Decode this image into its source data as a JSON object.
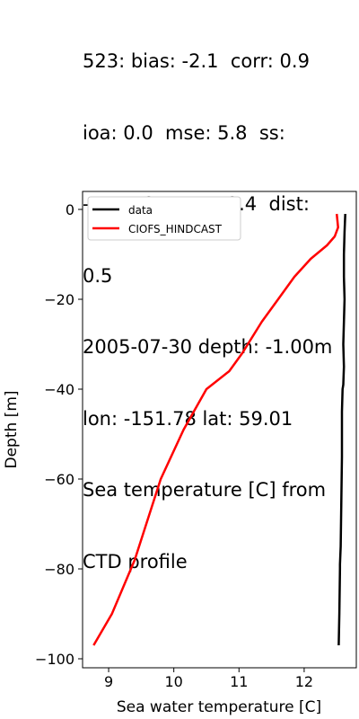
{
  "chart_data": {
    "type": "line",
    "title_lines": [
      "523: bias: -2.1  corr: 0.9",
      "ioa: 0.0  mse: 5.8  ss:",
      "-7715.2  rmse: 2.4  dist:",
      "0.5",
      "2005-07-30 depth: -1.00m",
      "lon: -151.78 lat: 59.01",
      "Sea temperature [C] from",
      "CTD profile"
    ],
    "xlabel": "Sea water temperature [C]",
    "ylabel": "Depth [m]",
    "xlim": [
      8.6,
      12.8
    ],
    "ylim": [
      -102,
      4
    ],
    "xticks": [
      9,
      10,
      11,
      12
    ],
    "yticks": [
      0,
      -20,
      -40,
      -60,
      -80,
      -100
    ],
    "legend_position": "upper-left",
    "series": [
      {
        "name": "data",
        "color": "#000000",
        "x": [
          12.63,
          12.62,
          12.61,
          12.61,
          12.62,
          12.61,
          12.6,
          12.61,
          12.6,
          12.59,
          12.58,
          12.58,
          12.57,
          12.56,
          12.55,
          12.55,
          12.54,
          12.53
        ],
        "y": [
          -1,
          -5,
          -10,
          -15,
          -20,
          -25,
          -30,
          -35,
          -39,
          -40,
          -45,
          -55,
          -65,
          -75,
          -79,
          -80,
          -90,
          -97
        ]
      },
      {
        "name": "CIOFS_HINDCAST",
        "color": "#ff0000",
        "x": [
          12.5,
          12.52,
          12.47,
          12.35,
          12.1,
          11.85,
          11.6,
          11.35,
          11.05,
          10.85,
          10.5,
          10.15,
          9.8,
          9.4,
          9.05,
          8.77
        ],
        "y": [
          -1,
          -4,
          -6,
          -8,
          -11,
          -15,
          -20,
          -25,
          -32,
          -36,
          -40,
          -49,
          -60,
          -78,
          -90,
          -97
        ]
      }
    ]
  }
}
